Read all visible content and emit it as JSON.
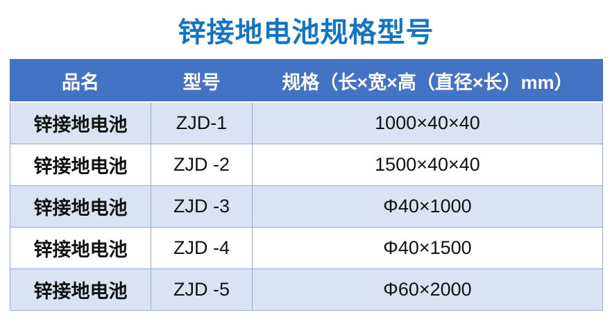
{
  "page": {
    "title": "锌接地电池规格型号"
  },
  "colors": {
    "title_text": "#1274C5",
    "header_bg": "#4472C4",
    "header_text": "#FFFFFF",
    "band_row_bg": "#DAE2F3",
    "plain_row_bg": "#FFFFFF",
    "cell_border": "#8FAAD4",
    "body_text": "#111111"
  },
  "table": {
    "columns": [
      "品名",
      "型号",
      "规格（长×宽×高（直径×长）mm）"
    ],
    "rows": [
      [
        "锌接地电池",
        "ZJD-1",
        "1000×40×40"
      ],
      [
        "锌接地电池",
        "ZJD -2",
        "1500×40×40"
      ],
      [
        "锌接地电池",
        "ZJD -3",
        "Φ40×1000"
      ],
      [
        "锌接地电池",
        "ZJD -4",
        "Φ40×1500"
      ],
      [
        "锌接地电池",
        "ZJD -5",
        "Φ60×2000"
      ]
    ]
  }
}
